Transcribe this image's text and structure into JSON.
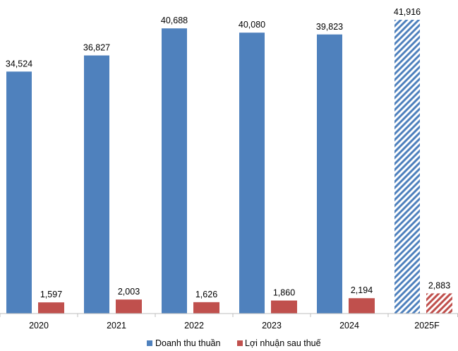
{
  "chart_data": {
    "type": "bar",
    "categories": [
      "2020",
      "2021",
      "2022",
      "2023",
      "2024",
      "2025F"
    ],
    "series": [
      {
        "name": "Doanh thu thuần",
        "values": [
          34524,
          36827,
          40688,
          40080,
          39823,
          41916
        ],
        "labels": [
          "34,524",
          "36,827",
          "40,688",
          "40,080",
          "39,823",
          "41,916"
        ],
        "color": "#4f81bd",
        "forecast_fill": "diagonal-hatch"
      },
      {
        "name": "Lợi nhuận sau thuế",
        "values": [
          1597,
          2003,
          1626,
          1860,
          2194,
          2883
        ],
        "labels": [
          "1,597",
          "2,003",
          "1,626",
          "1,860",
          "2,194",
          "2,883"
        ],
        "color": "#c0504d",
        "forecast_fill": "diagonal-hatch"
      }
    ],
    "forecast_categories": [
      "2025F"
    ],
    "ylim": [
      0,
      42000
    ],
    "grid": false,
    "legend_position": "bottom-center",
    "title": "",
    "xlabel": "",
    "ylabel": ""
  }
}
